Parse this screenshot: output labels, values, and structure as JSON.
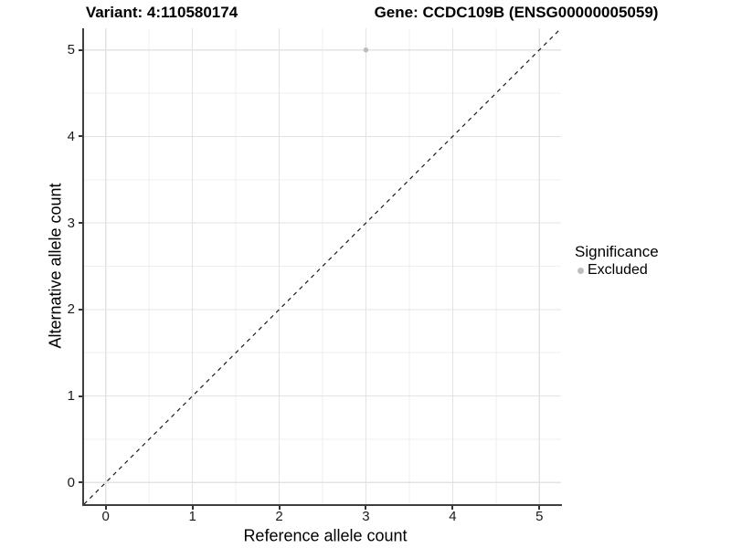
{
  "chart_data": {
    "type": "scatter",
    "title_left": "Variant: 4:110580174",
    "title_right": "Gene: CCDC109B (ENSG00000005059)",
    "xlabel": "Reference allele count",
    "ylabel": "Alternative allele count",
    "xlim": [
      -0.25,
      5.25
    ],
    "ylim": [
      -0.25,
      5.25
    ],
    "x_ticks": [
      0,
      1,
      2,
      3,
      4,
      5
    ],
    "y_ticks": [
      0,
      1,
      2,
      3,
      4,
      5
    ],
    "x_minor_ticks": [
      0.5,
      1.5,
      2.5,
      3.5,
      4.5
    ],
    "y_minor_ticks": [
      0.5,
      1.5,
      2.5,
      3.5,
      4.5
    ],
    "grid": "major and minor gridlines, white panel background",
    "points": [
      {
        "x": 3,
        "y": 5,
        "significance": "Excluded"
      }
    ],
    "reference_line": {
      "type": "identity y=x",
      "style": "dashed",
      "span": "full panel diagonal"
    },
    "legend": {
      "title": "Significance",
      "position": "right",
      "entries": [
        {
          "label": "Excluded",
          "color": "#bebebe"
        }
      ]
    }
  },
  "colors": {
    "background": "#ffffff",
    "grid_major": "#e3e3e3",
    "grid_minor": "#efefef",
    "axis_line": "#3f3f3f",
    "tick_label": "#1a1a1a",
    "dashed_line": "#1a1a1a",
    "point_excluded": "#bebebe"
  }
}
